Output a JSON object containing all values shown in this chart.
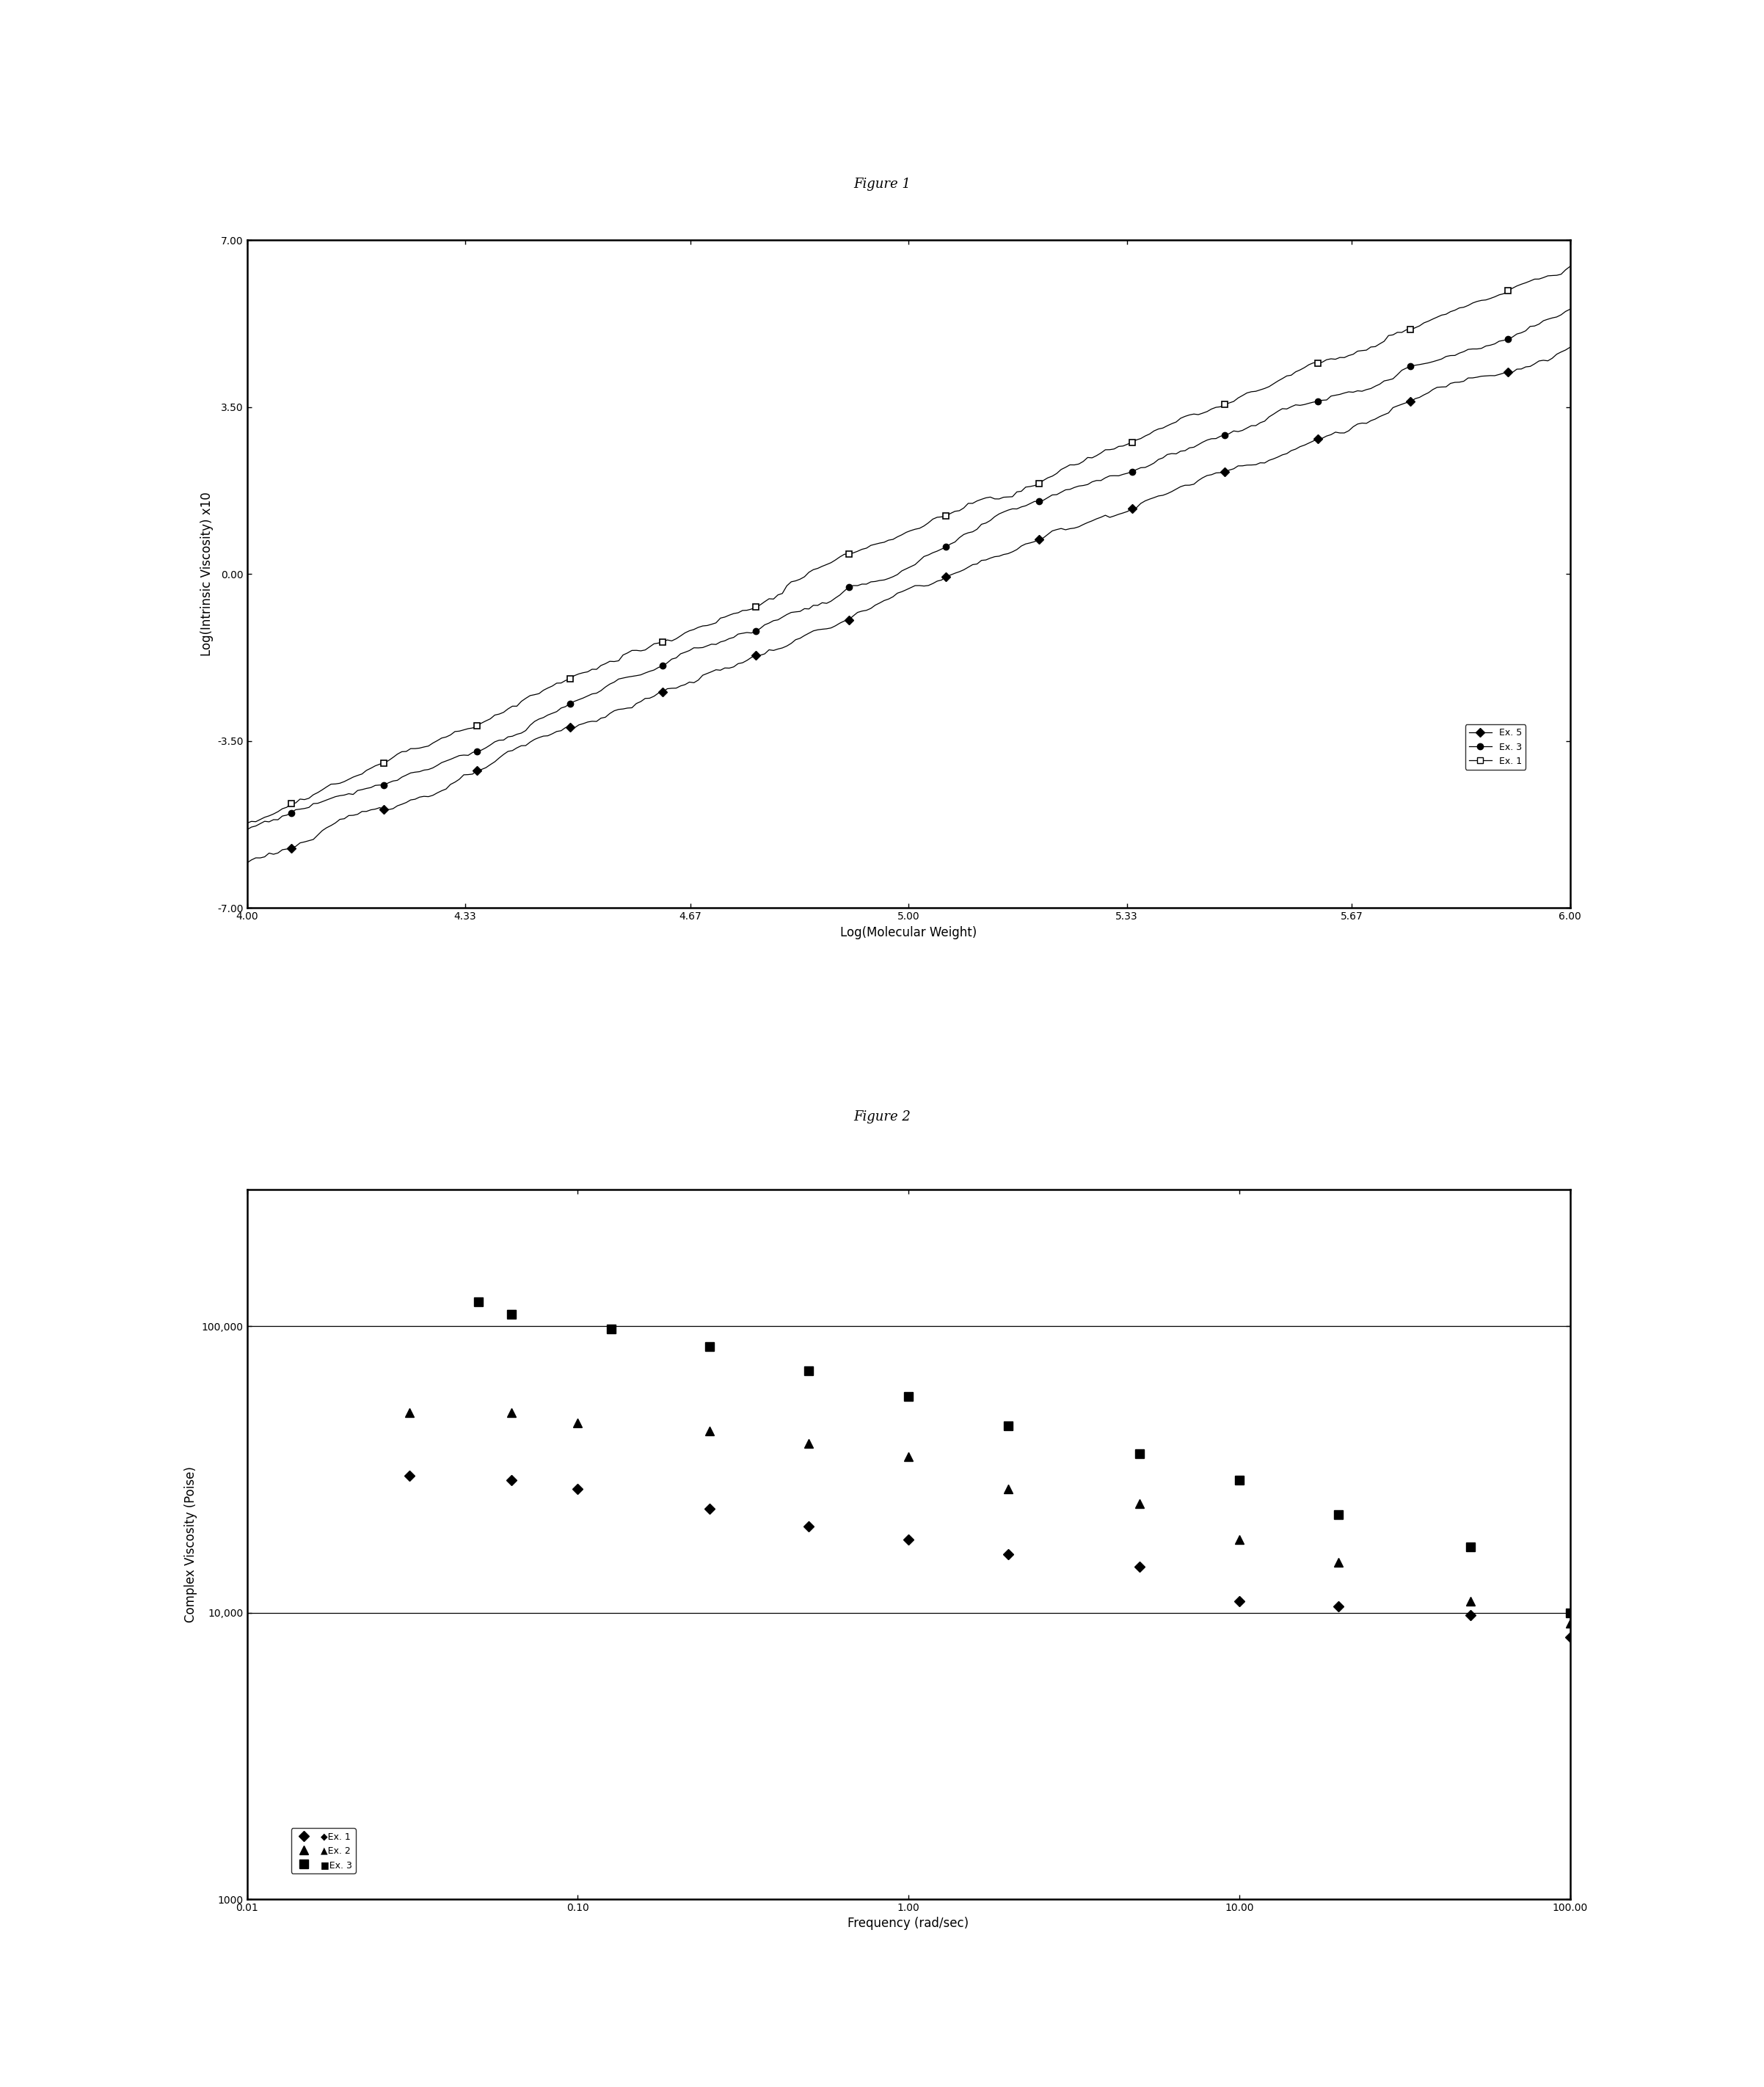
{
  "fig1_title": "Figure 1",
  "fig1_xlabel": "Log(Molecular Weight)",
  "fig1_ylabel": "Log(Intrinsic Viscosity) x10",
  "fig1_xlim": [
    4.0,
    6.0
  ],
  "fig1_ylim": [
    -7.0,
    7.0
  ],
  "fig1_xticks": [
    4.0,
    4.33,
    4.67,
    5.0,
    5.33,
    5.67,
    6.0
  ],
  "fig1_yticks": [
    -7.0,
    -3.5,
    0.0,
    3.5,
    7.0
  ],
  "fig2_title": "Figure 2",
  "fig2_xlabel": "Frequency (rad/sec)",
  "fig2_ylabel": "Complex Viscosity (Poise)",
  "fig2_ex1_freq": [
    0.031,
    0.063,
    0.1,
    0.25,
    0.5,
    1.0,
    2.0,
    5.0,
    10.0,
    20.0,
    50.0,
    100.0
  ],
  "fig2_ex1_visc": [
    30000,
    29000,
    27000,
    23000,
    20000,
    18000,
    16000,
    14500,
    11000,
    10500,
    9800,
    8200
  ],
  "fig2_ex2_freq": [
    0.031,
    0.063,
    0.1,
    0.25,
    0.5,
    1.0,
    2.0,
    5.0,
    10.0,
    20.0,
    50.0,
    100.0
  ],
  "fig2_ex2_visc": [
    50000,
    50000,
    46000,
    43000,
    39000,
    35000,
    27000,
    24000,
    18000,
    15000,
    11000,
    9200
  ],
  "fig2_ex3_freq": [
    0.05,
    0.063,
    0.126,
    0.25,
    0.5,
    1.0,
    2.0,
    5.0,
    10.0,
    20.0,
    50.0,
    100.0
  ],
  "fig2_ex3_visc": [
    122000,
    110000,
    98000,
    85000,
    70000,
    57000,
    45000,
    36000,
    29000,
    22000,
    17000,
    10000
  ],
  "background_color": "#ffffff",
  "line_color": "#000000",
  "title_fontsize": 13,
  "label_fontsize": 12,
  "tick_fontsize": 10
}
